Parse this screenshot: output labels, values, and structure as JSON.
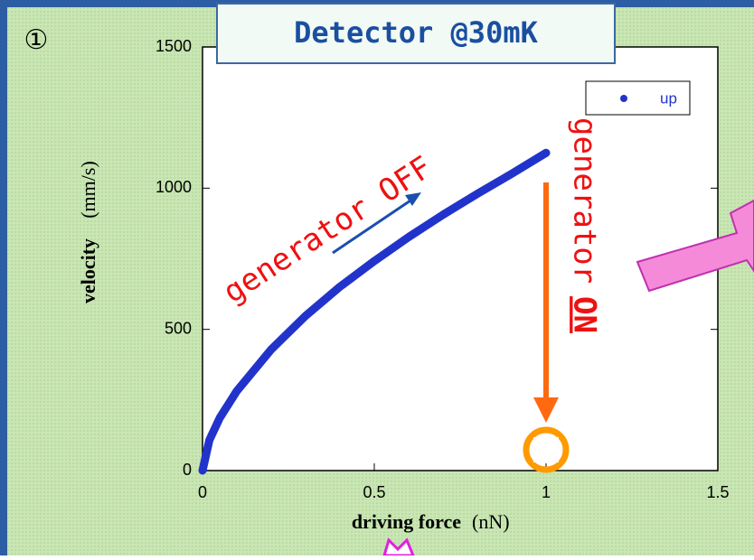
{
  "chart_data": {
    "type": "scatter",
    "title": "Detector @30mK",
    "panel_label": "①",
    "x_label": {
      "bold": "driving force",
      "unit": "(nN)"
    },
    "y_label": {
      "bold": "velocity",
      "unit": "(mm/s)"
    },
    "x": [
      0,
      0.02,
      0.05,
      0.1,
      0.2,
      0.3,
      0.4,
      0.5,
      0.6,
      0.7,
      0.8,
      0.9,
      1.0
    ],
    "series": [
      {
        "name": "up",
        "color": "#2233cc",
        "values": [
          0,
          108,
          186,
          282,
          429,
          548,
          651,
          742,
          827,
          906,
          980,
          1051,
          1125
        ]
      }
    ],
    "xlim": [
      0,
      1.5
    ],
    "ylim": [
      0,
      1500
    ],
    "xticks": [
      0,
      0.5,
      1,
      1.5
    ],
    "yticks": [
      0,
      500,
      1000,
      1500
    ],
    "legend": "upper-right",
    "annotations": {
      "off": "generator OFF",
      "on_prefix": "generator",
      "on_word": "ON"
    }
  }
}
